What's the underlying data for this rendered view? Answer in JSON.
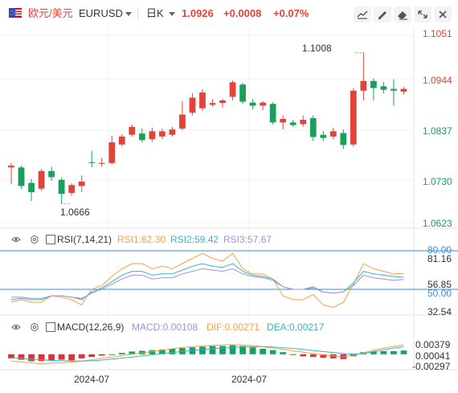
{
  "toolbar": {
    "symbol_name": "欧元/美元",
    "symbol_code": "EURUSD",
    "period": "日K",
    "last_price": "1.0926",
    "change": "+0.0008",
    "change_pct": "+0.07%",
    "icons": [
      "pencil-chart-icon",
      "draw-pencil-icon",
      "eraser-icon",
      "expand-icon",
      "settings-icon"
    ]
  },
  "colors": {
    "up": "#e0443a",
    "down": "#1aa05a",
    "rsi1": "#f5a142",
    "rsi2": "#2fb9c9",
    "rsi3": "#a98fd4",
    "macd_up": "#e0303a",
    "macd_down": "#17a060",
    "dif": "#f5a142",
    "dea": "#2fb9c9",
    "ref_line": "#3a8ed8"
  },
  "main_axis": {
    "labels": [
      "1.1051",
      "1.0944",
      "1.0837",
      "1.0730",
      "1.0623"
    ]
  },
  "annotations": {
    "high": "1.1008",
    "low": "1.0666"
  },
  "rsi": {
    "title": "RSI(7,14,21)",
    "v1": "RSI1:62.30",
    "v2": "RSI2:59.42",
    "v3": "RSI3:57.67",
    "axis": [
      "80.00",
      "81.16",
      "56.85",
      "50.00",
      "32.54"
    ]
  },
  "macd": {
    "title": "MACD(12,26,9)",
    "v1": "MACD:0.00108",
    "v2": "DIF:0.00271",
    "v3": "DEA:0.00217",
    "axis": [
      "0.00379",
      "0.00041",
      "-0.00297"
    ]
  },
  "x_labels": [
    "2024-07",
    "2024-07"
  ],
  "chart_data": {
    "type": "candlestick",
    "ylim": [
      1.0623,
      1.1051
    ],
    "candles": [
      {
        "o": 1.0748,
        "c": 1.0752,
        "h": 1.0758,
        "l": 1.071
      },
      {
        "o": 1.0748,
        "c": 1.0706,
        "h": 1.0752,
        "l": 1.07
      },
      {
        "o": 1.0713,
        "c": 1.0692,
        "h": 1.0722,
        "l": 1.0672
      },
      {
        "o": 1.07,
        "c": 1.074,
        "h": 1.0745,
        "l": 1.0695
      },
      {
        "o": 1.074,
        "c": 1.0726,
        "h": 1.075,
        "l": 1.0718
      },
      {
        "o": 1.072,
        "c": 1.0688,
        "h": 1.0725,
        "l": 1.0666
      },
      {
        "o": 1.069,
        "c": 1.0708,
        "h": 1.0712,
        "l": 1.0684
      },
      {
        "o": 1.0706,
        "c": 1.0716,
        "h": 1.073,
        "l": 1.0692
      },
      {
        "o": 1.076,
        "c": 1.0758,
        "h": 1.0786,
        "l": 1.0748
      },
      {
        "o": 1.0756,
        "c": 1.0758,
        "h": 1.077,
        "l": 1.075
      },
      {
        "o": 1.0758,
        "c": 1.0805,
        "h": 1.082,
        "l": 1.0755
      },
      {
        "o": 1.08,
        "c": 1.0818,
        "h": 1.0824,
        "l": 1.0795
      },
      {
        "o": 1.0822,
        "c": 1.084,
        "h": 1.0846,
        "l": 1.0818
      },
      {
        "o": 1.0825,
        "c": 1.081,
        "h": 1.0836,
        "l": 1.0805
      },
      {
        "o": 1.0812,
        "c": 1.083,
        "h": 1.0838,
        "l": 1.0806
      },
      {
        "o": 1.0818,
        "c": 1.083,
        "h": 1.0836,
        "l": 1.0812
      },
      {
        "o": 1.0822,
        "c": 1.0834,
        "h": 1.084,
        "l": 1.0818
      },
      {
        "o": 1.0836,
        "c": 1.0868,
        "h": 1.0898,
        "l": 1.0832
      },
      {
        "o": 1.0872,
        "c": 1.0906,
        "h": 1.0916,
        "l": 1.0866
      },
      {
        "o": 1.0882,
        "c": 1.0918,
        "h": 1.0925,
        "l": 1.0876
      },
      {
        "o": 1.089,
        "c": 1.0894,
        "h": 1.0902,
        "l": 1.0886
      },
      {
        "o": 1.0894,
        "c": 1.09,
        "h": 1.0904,
        "l": 1.0884
      },
      {
        "o": 1.0908,
        "c": 1.0941,
        "h": 1.0945,
        "l": 1.09
      },
      {
        "o": 1.0936,
        "c": 1.0897,
        "h": 1.094,
        "l": 1.0892
      },
      {
        "o": 1.0895,
        "c": 1.0888,
        "h": 1.0903,
        "l": 1.088
      },
      {
        "o": 1.0888,
        "c": 1.0895,
        "h": 1.0898,
        "l": 1.0878
      },
      {
        "o": 1.0892,
        "c": 1.085,
        "h": 1.0896,
        "l": 1.0845
      },
      {
        "o": 1.085,
        "c": 1.0858,
        "h": 1.0866,
        "l": 1.0834
      },
      {
        "o": 1.085,
        "c": 1.0844,
        "h": 1.0856,
        "l": 1.084
      },
      {
        "o": 1.0846,
        "c": 1.0856,
        "h": 1.0866,
        "l": 1.084
      },
      {
        "o": 1.086,
        "c": 1.0817,
        "h": 1.0866,
        "l": 1.0808
      },
      {
        "o": 1.0822,
        "c": 1.0815,
        "h": 1.083,
        "l": 1.0808
      },
      {
        "o": 1.0818,
        "c": 1.083,
        "h": 1.0838,
        "l": 1.0812
      },
      {
        "o": 1.0826,
        "c": 1.0799,
        "h": 1.0834,
        "l": 1.079
      },
      {
        "o": 1.08,
        "c": 1.0922,
        "h": 1.0928,
        "l": 1.0795
      },
      {
        "o": 1.0922,
        "c": 1.0944,
        "h": 1.1008,
        "l": 1.09
      },
      {
        "o": 1.0944,
        "c": 1.0928,
        "h": 1.095,
        "l": 1.09
      },
      {
        "o": 1.0932,
        "c": 1.0924,
        "h": 1.0942,
        "l": 1.0916
      },
      {
        "o": 1.0926,
        "c": 1.0922,
        "h": 1.0948,
        "l": 1.0888
      },
      {
        "o": 1.092,
        "c": 1.0926,
        "h": 1.093,
        "l": 1.0914
      }
    ],
    "rsi": {
      "ylim": [
        32.54,
        85
      ],
      "rsi1": [
        40,
        42,
        40,
        40,
        45,
        44,
        42,
        38,
        50,
        53,
        60,
        66,
        70,
        70,
        66,
        68,
        66,
        70,
        74,
        78,
        74,
        72,
        78,
        66,
        62,
        62,
        58,
        45,
        42,
        42,
        46,
        38,
        36,
        40,
        54,
        70,
        66,
        64,
        62,
        62.3
      ],
      "rsi2": [
        42,
        43,
        42,
        42,
        45,
        45,
        44,
        42,
        48,
        51,
        56,
        61,
        64,
        64,
        61,
        62,
        62,
        65,
        68,
        70,
        68,
        67,
        70,
        64,
        61,
        60,
        58,
        52,
        50,
        50,
        52,
        48,
        47,
        48,
        55,
        64,
        62,
        61,
        60,
        59.42
      ],
      "rsi3": [
        44,
        44,
        43,
        43,
        45,
        45,
        44,
        43,
        47,
        50,
        54,
        58,
        61,
        61,
        58,
        59,
        59,
        62,
        64,
        66,
        65,
        64,
        66,
        62,
        60,
        59,
        57,
        52,
        50,
        50,
        51,
        48,
        47,
        48,
        53,
        61,
        59,
        58,
        57,
        57.67
      ]
    },
    "macd": {
      "ylim": [
        -0.0045,
        0.0058
      ],
      "bars": [
        -0.0012,
        -0.0016,
        -0.002,
        -0.002,
        -0.0018,
        -0.0016,
        -0.0018,
        -0.0012,
        -0.0008,
        -0.0004,
        0.0,
        0.0004,
        0.0008,
        0.001,
        0.0012,
        0.0014,
        0.0016,
        0.0018,
        0.002,
        0.0022,
        0.0024,
        0.0024,
        0.0026,
        0.0024,
        0.002,
        0.0016,
        0.0012,
        0.0006,
        -0.0002,
        -0.0006,
        -0.0008,
        -0.001,
        -0.0012,
        -0.0014,
        -0.0006,
        0.0006,
        0.0008,
        0.0009,
        0.0009,
        0.00108
      ],
      "dif": [
        -0.002,
        -0.0022,
        -0.0025,
        -0.0028,
        -0.0026,
        -0.0025,
        -0.0023,
        -0.002,
        -0.0016,
        -0.0012,
        -0.0008,
        -0.0004,
        0.0,
        0.0004,
        0.0008,
        0.0012,
        0.0016,
        0.002,
        0.0022,
        0.0024,
        0.0026,
        0.0027,
        0.0028,
        0.0027,
        0.0025,
        0.0022,
        0.0018,
        0.0014,
        0.001,
        0.0006,
        0.0002,
        -0.0002,
        -0.0005,
        -0.0007,
        -0.0004,
        0.0004,
        0.0012,
        0.0018,
        0.0023,
        0.00271
      ],
      "dea": [
        -0.001,
        -0.0012,
        -0.0014,
        -0.0016,
        -0.0018,
        -0.0019,
        -0.002,
        -0.002,
        -0.0019,
        -0.0017,
        -0.0014,
        -0.0011,
        -0.0008,
        -0.0005,
        -0.0002,
        0.0002,
        0.0005,
        0.0008,
        0.0011,
        0.0014,
        0.0016,
        0.0018,
        0.002,
        0.0021,
        0.0022,
        0.0022,
        0.0021,
        0.0019,
        0.0017,
        0.0014,
        0.0011,
        0.0008,
        0.0005,
        0.0002,
        0.0,
        0.0002,
        0.0008,
        0.0013,
        0.0018,
        0.00217
      ]
    }
  }
}
